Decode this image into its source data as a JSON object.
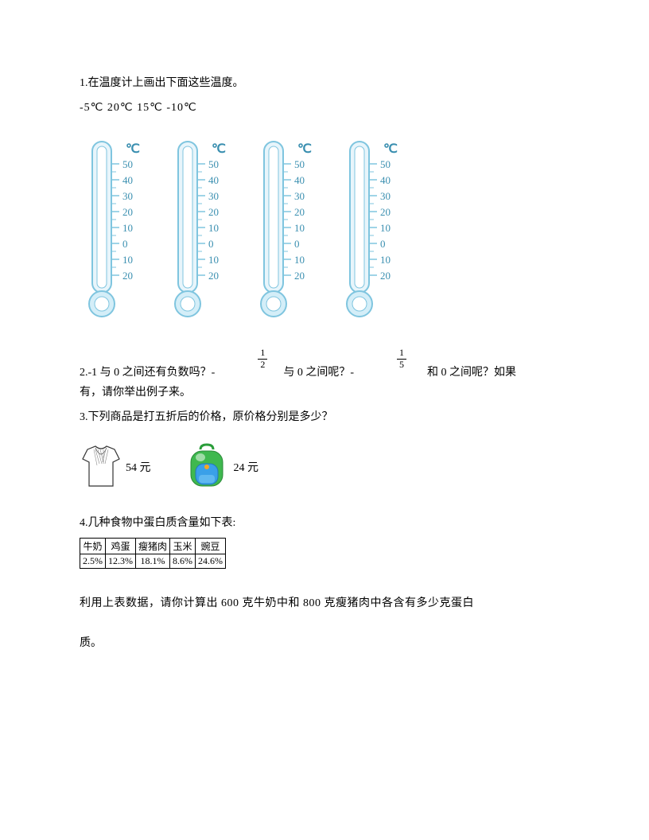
{
  "q1": {
    "text": "1.在温度计上画出下面这些温度。",
    "temps": "-5℃    20℃    15℃    -10℃"
  },
  "thermometer": {
    "unit": "℃",
    "scale_labels": [
      "50",
      "40",
      "30",
      "20",
      "10",
      "0",
      "10",
      "20"
    ],
    "tube_fill": "#e8f5fb",
    "tube_stroke": "#7fc5df",
    "bulb_fill": "#d4eef8",
    "text_color": "#3a8fb0",
    "count": 4
  },
  "q2": {
    "pre": "2.-1 与 0 之间还有负数吗？-",
    "frac1_num": "1",
    "frac1_den": "2",
    "mid1": "与 0 之间呢？-",
    "frac2_num": "1",
    "frac2_den": "5",
    "mid2": "和 0 之间呢？如果",
    "cont": "有，请你举出例子来。"
  },
  "q3": {
    "text": "3.下列商品是打五折后的价格，原价格分别是多少？",
    "shirt_price": "54 元",
    "bag_price": "24 元"
  },
  "q4": {
    "title": "4.几种食物中蛋白质含量如下表:",
    "headers": [
      "牛奶",
      "鸡蛋",
      "瘦猪肉",
      "玉米",
      "豌豆"
    ],
    "values": [
      "2.5%",
      "12.3%",
      "18.1%",
      "8.6%",
      "24.6%"
    ],
    "body1": "利用上表数据，请你计算出 600 克牛奶中和 800 克瘦猪肉中各含有多少克蛋白",
    "body2": "质。"
  }
}
